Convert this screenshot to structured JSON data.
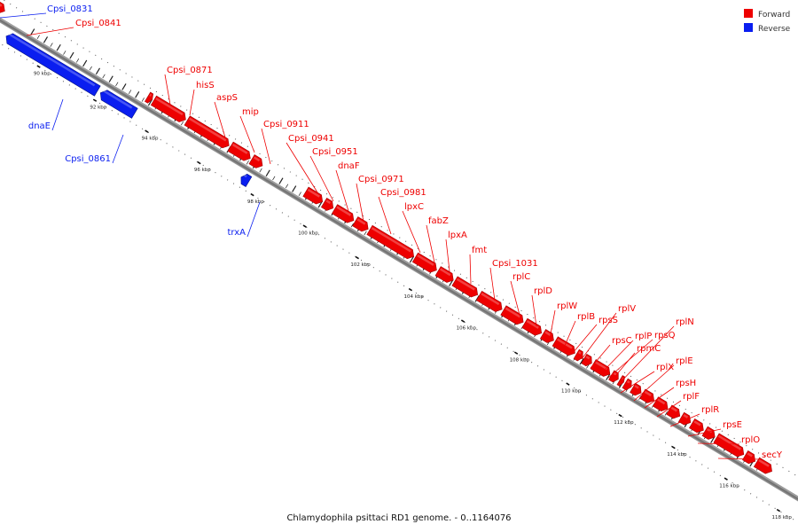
{
  "legend": {
    "forward": {
      "label": "Forward",
      "color": "#ee0000"
    },
    "reverse": {
      "label": "Reverse",
      "color": "#0a1ef0"
    }
  },
  "caption": "Chlamydophila psittaci RD1 genome. - 0..1164076",
  "tick_labels": [
    "90 kbp",
    "92 kbp",
    "94 kbp",
    "96 kbp",
    "98 kbp",
    "100 kbp",
    "102 kbp",
    "104 kbp",
    "106 kbp",
    "108 kbp",
    "110 kbp",
    "112 kbp",
    "114 kbp",
    "116 kbp",
    "118 kbp"
  ],
  "genes": [
    {
      "name": "Cpsi_0831",
      "strand": "reverse"
    },
    {
      "name": "Cpsi_0841",
      "strand": "forward"
    },
    {
      "name": "dnaE",
      "strand": "reverse"
    },
    {
      "name": "Cpsi_0861",
      "strand": "reverse"
    },
    {
      "name": "Cpsi_0871",
      "strand": "forward"
    },
    {
      "name": "hisS",
      "strand": "forward"
    },
    {
      "name": "aspS",
      "strand": "forward"
    },
    {
      "name": "mip",
      "strand": "forward"
    },
    {
      "name": "Cpsi_0911",
      "strand": "forward"
    },
    {
      "name": "trxA",
      "strand": "reverse"
    },
    {
      "name": "Cpsi_0941",
      "strand": "forward"
    },
    {
      "name": "Cpsi_0951",
      "strand": "forward"
    },
    {
      "name": "dnaF",
      "strand": "forward"
    },
    {
      "name": "Cpsi_0971",
      "strand": "forward"
    },
    {
      "name": "Cpsi_0981",
      "strand": "forward"
    },
    {
      "name": "lpxC",
      "strand": "forward"
    },
    {
      "name": "fabZ",
      "strand": "forward"
    },
    {
      "name": "lpxA",
      "strand": "forward"
    },
    {
      "name": "fmt",
      "strand": "forward"
    },
    {
      "name": "Cpsi_1031",
      "strand": "forward"
    },
    {
      "name": "rplC",
      "strand": "forward"
    },
    {
      "name": "rplD",
      "strand": "forward"
    },
    {
      "name": "rplW",
      "strand": "forward"
    },
    {
      "name": "rplB",
      "strand": "forward"
    },
    {
      "name": "rpsS",
      "strand": "forward"
    },
    {
      "name": "rplV",
      "strand": "forward"
    },
    {
      "name": "rpsC",
      "strand": "forward"
    },
    {
      "name": "rplP",
      "strand": "forward"
    },
    {
      "name": "rpsQ",
      "strand": "forward"
    },
    {
      "name": "rplN",
      "strand": "forward"
    },
    {
      "name": "rpmC",
      "strand": "forward"
    },
    {
      "name": "rplX",
      "strand": "forward"
    },
    {
      "name": "rplE",
      "strand": "forward"
    },
    {
      "name": "rpsH",
      "strand": "forward"
    },
    {
      "name": "rplF",
      "strand": "forward"
    },
    {
      "name": "rplR",
      "strand": "forward"
    },
    {
      "name": "rpsE",
      "strand": "forward"
    },
    {
      "name": "rplO",
      "strand": "forward"
    },
    {
      "name": "secY",
      "strand": "forward"
    }
  ]
}
